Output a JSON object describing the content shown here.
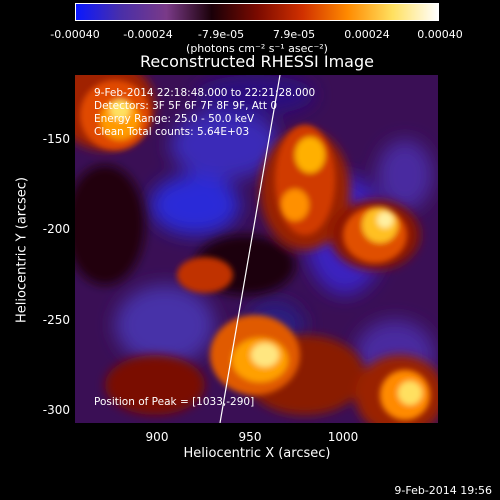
{
  "colorbar": {
    "ticks": [
      "-0.00040",
      "-0.00024",
      "-7.9e-05",
      "7.9e-05",
      "0.00024",
      "0.00040"
    ],
    "units": "(photons cm⁻² s⁻¹ asec⁻²)",
    "colors": [
      "#0a18ff",
      "#4a2fa8",
      "#7a3a88",
      "#1a0008",
      "#7a0a00",
      "#d03000",
      "#ff8a00",
      "#ffe060",
      "#ffffff"
    ]
  },
  "plot": {
    "title": "Reconstructed RHESSI Image",
    "annotations": {
      "time": "9-Feb-2014 22:18:48.000 to 22:21:28.000",
      "detectors": "Detectors: 3F 5F 6F 7F 8F 9F, Att 0",
      "energy": "Energy Range: 25.0 - 50.0 keV",
      "clean": "Clean     Total counts: 5.64E+03",
      "peak": "Position of Peak = [1033,-290]"
    },
    "x_axis": {
      "label": "Heliocentric X (arcsec)",
      "ticks": [
        "900",
        "950",
        "1000"
      ]
    },
    "y_axis": {
      "label": "Heliocentric Y (arcsec)",
      "ticks": [
        "-150",
        "-200",
        "-250",
        "-300"
      ]
    }
  },
  "footer": {
    "timestamp": "9-Feb-2014 19:56"
  }
}
